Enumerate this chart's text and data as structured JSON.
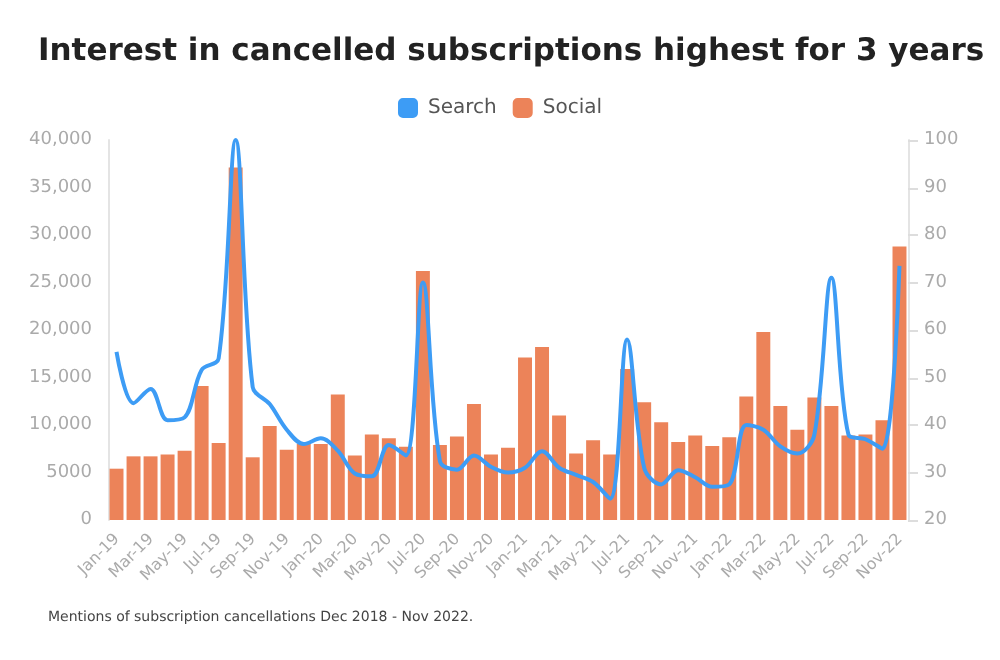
{
  "chart_data": {
    "type": "bar",
    "title": "Interest in cancelled subscriptions highest for 3 years",
    "categories": [
      "Jan-19",
      null,
      "Mar-19",
      null,
      "May-19",
      null,
      "Jul-19",
      null,
      "Sep-19",
      null,
      "Nov-19",
      null,
      "Jan-20",
      null,
      "Mar-20",
      null,
      "May-20",
      null,
      "Jul-20",
      null,
      "Sep-20",
      null,
      "Nov-20",
      null,
      "Jan-21",
      null,
      "Mar-21",
      null,
      "May-21",
      null,
      "Jul-21",
      null,
      "Sep-21",
      null,
      "Nov-21",
      null,
      "Jan-22",
      null,
      "Mar-22",
      null,
      "May-22",
      null,
      "Jul-22",
      null,
      "Sep-22",
      null,
      "Nov-22"
    ],
    "series": [
      {
        "name": "Search",
        "type": "line",
        "axis": "y2",
        "color": "#3d9cf5",
        "values": [
          55.4,
          44.6,
          47.6,
          41,
          41.6,
          51.6,
          54,
          100,
          48,
          44.4,
          39,
          36,
          37.2,
          34.6,
          29.8,
          29.2,
          35.8,
          33.6,
          70,
          32.4,
          30.6,
          33.6,
          31.2,
          30,
          31,
          34.5,
          31,
          29.5,
          28,
          24.5,
          58,
          31,
          27.5,
          30.5,
          29,
          27,
          27.5,
          40,
          39,
          35.5,
          34,
          38,
          71,
          38,
          37,
          35,
          73.5
        ]
      },
      {
        "name": "Social",
        "color": "#ec8359",
        "values": [
          5400,
          6700,
          6700,
          6900,
          7300,
          14100,
          8100,
          37100,
          6600,
          9900,
          7400,
          8000,
          8000,
          13200,
          6800,
          9000,
          8600,
          7700,
          26200,
          7900,
          8800,
          12200,
          6900,
          7600,
          17100,
          18200,
          11000,
          7000,
          8400,
          6900,
          15900,
          12400,
          10300,
          8200,
          8900,
          7800,
          8700,
          13000,
          19800,
          12000,
          9500,
          12900,
          12000,
          8900,
          9000,
          10500,
          28800
        ]
      }
    ],
    "ylim": [
      0,
      40000
    ],
    "yticks": [
      0,
      {
        "value": 5000,
        "label": "5000"
      },
      {
        "value": 10000,
        "label": "10,000"
      },
      {
        "value": 15000,
        "label": "15,000"
      },
      {
        "value": 20000,
        "label": "20,000"
      },
      {
        "value": 25000,
        "label": "25,000"
      },
      {
        "value": 30000,
        "label": "30,000"
      },
      {
        "value": 35000,
        "label": "35,000"
      },
      {
        "value": 40000,
        "label": "40,000"
      }
    ],
    "y2lim": [
      20,
      100
    ],
    "y2ticks": [
      20,
      30,
      40,
      50,
      60,
      70,
      80,
      90,
      100
    ],
    "legend": "top",
    "grid": false,
    "marker": "none",
    "annotations": [
      "Mentions of subscription cancellations Dec 2018 - Nov 2022."
    ]
  }
}
